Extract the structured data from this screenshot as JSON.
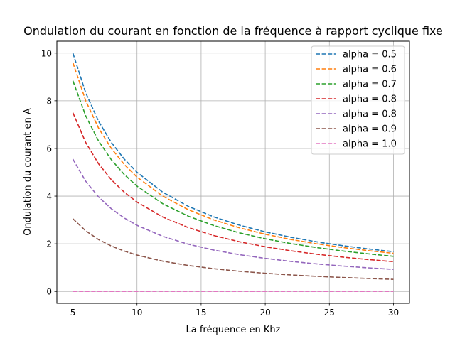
{
  "chart_data": {
    "type": "line",
    "title": "Ondulation du courant en fonction de la fréquence à rapport cyclique fixe",
    "xlabel": "La fréquence en Khz",
    "ylabel": "Ondulation du courant en A",
    "xlim": [
      3.75,
      31.25
    ],
    "ylim": [
      -0.5,
      10.5
    ],
    "xticks": [
      5,
      10,
      15,
      20,
      25,
      30
    ],
    "yticks": [
      0,
      2,
      4,
      6,
      8,
      10
    ],
    "grid": true,
    "legend_position": "top-right",
    "x": [
      5,
      6,
      7,
      8,
      9,
      10,
      12,
      14,
      16,
      18,
      20,
      22,
      24,
      26,
      28,
      30
    ],
    "series": [
      {
        "name": "alpha = 0.5",
        "color": "#1f77b4",
        "values": [
          10.0,
          8.333,
          7.143,
          6.25,
          5.556,
          5.0,
          4.167,
          3.571,
          3.125,
          2.778,
          2.5,
          2.273,
          2.083,
          1.923,
          1.786,
          1.667
        ]
      },
      {
        "name": "alpha = 0.6",
        "color": "#ff7f0e",
        "values": [
          9.6,
          8.0,
          6.857,
          6.0,
          5.333,
          4.8,
          4.0,
          3.429,
          3.0,
          2.667,
          2.4,
          2.182,
          2.0,
          1.846,
          1.714,
          1.6
        ]
      },
      {
        "name": "alpha = 0.7",
        "color": "#2ca02c",
        "values": [
          8.84,
          7.367,
          6.314,
          5.525,
          4.911,
          4.42,
          3.683,
          3.157,
          2.763,
          2.456,
          2.21,
          2.009,
          1.842,
          1.7,
          1.579,
          1.473
        ]
      },
      {
        "name": "alpha = 0.8",
        "color": "#d62728",
        "values": [
          7.5,
          6.25,
          5.357,
          4.688,
          4.167,
          3.75,
          3.125,
          2.679,
          2.344,
          2.083,
          1.875,
          1.705,
          1.563,
          1.442,
          1.339,
          1.25
        ]
      },
      {
        "name": "alpha = 0.8",
        "color": "#9467bd",
        "values": [
          5.55,
          4.625,
          3.964,
          3.469,
          3.083,
          2.775,
          2.313,
          1.982,
          1.734,
          1.542,
          1.388,
          1.261,
          1.156,
          1.067,
          0.991,
          0.925
        ]
      },
      {
        "name": "alpha = 0.9",
        "color": "#8c564b",
        "values": [
          3.05,
          2.542,
          2.179,
          1.906,
          1.694,
          1.525,
          1.271,
          1.089,
          0.953,
          0.847,
          0.763,
          0.693,
          0.635,
          0.587,
          0.545,
          0.508
        ]
      },
      {
        "name": "alpha = 1.0",
        "color": "#e377c2",
        "values": [
          0,
          0,
          0,
          0,
          0,
          0,
          0,
          0,
          0,
          0,
          0,
          0,
          0,
          0,
          0,
          0
        ]
      }
    ]
  }
}
